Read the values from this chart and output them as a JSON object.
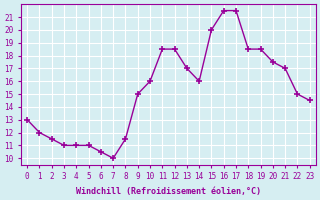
{
  "x": [
    0,
    1,
    2,
    3,
    4,
    5,
    6,
    7,
    8,
    9,
    10,
    11,
    12,
    13,
    14,
    15,
    16,
    17,
    18,
    19,
    20,
    21,
    22,
    23
  ],
  "y": [
    13,
    12,
    11.5,
    11,
    11,
    11,
    10.5,
    10,
    11.5,
    15,
    16,
    18.5,
    18.5,
    17,
    16,
    20,
    21.5,
    21.5,
    18.5,
    18.5,
    17.5,
    17,
    15,
    14.5
  ],
  "line_color": "#990099",
  "marker": "+",
  "marker_size": 5,
  "bg_color": "#d6eef2",
  "grid_color": "#ffffff",
  "xlabel": "Windchill (Refroidissement éolien,°C)",
  "xlabel_color": "#990099",
  "xlim": [
    -0.5,
    23.5
  ],
  "ylim": [
    9.5,
    22
  ],
  "yticks": [
    10,
    11,
    12,
    13,
    14,
    15,
    16,
    17,
    18,
    19,
    20,
    21
  ],
  "xticks": [
    0,
    1,
    2,
    3,
    4,
    5,
    6,
    7,
    8,
    9,
    10,
    11,
    12,
    13,
    14,
    15,
    16,
    17,
    18,
    19,
    20,
    21,
    22,
    23
  ]
}
